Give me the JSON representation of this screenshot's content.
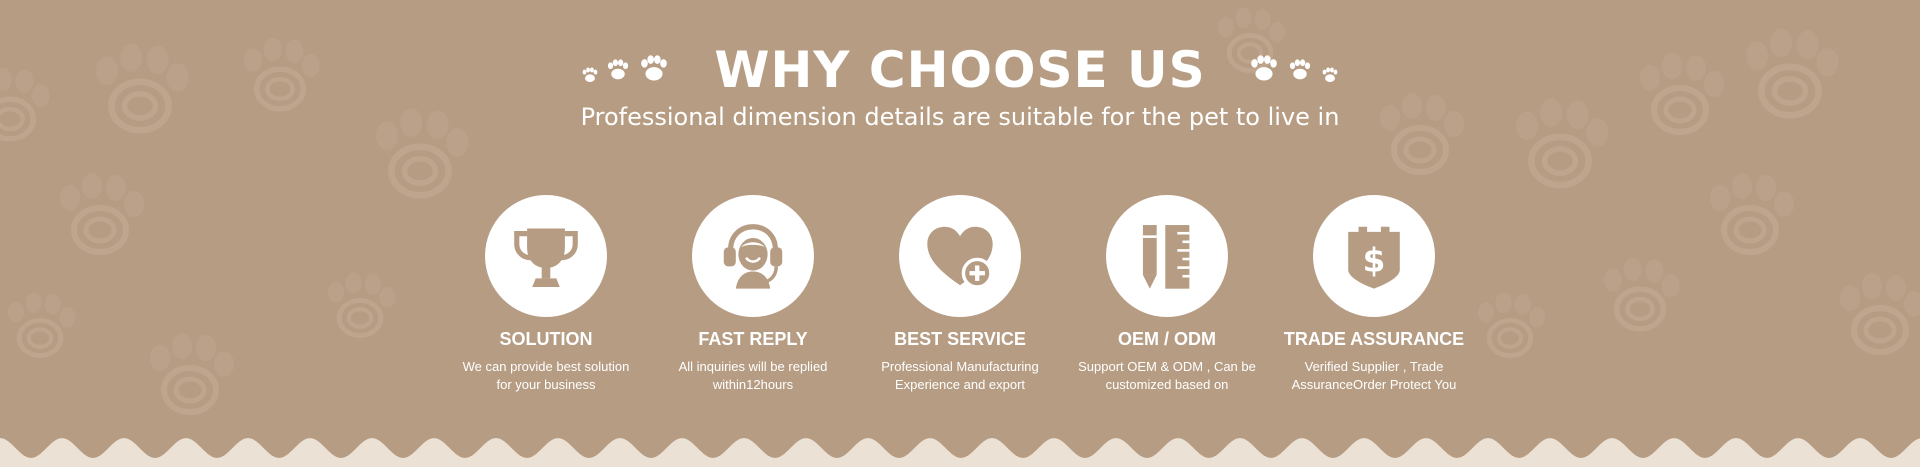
{
  "colors": {
    "background": "#b69c83",
    "foreground": "#ffffff",
    "wave": "#ece1d5"
  },
  "heading": {
    "title": "WHY CHOOSE US",
    "subtitle": "Professional dimension details are suitable for the pet to live in"
  },
  "features": [
    {
      "icon": "trophy-icon",
      "title": "SOLUTION",
      "desc": "We can provide best solution for your business"
    },
    {
      "icon": "headset-icon",
      "title": "FAST REPLY",
      "desc": "All inquiries will be replied within12hours"
    },
    {
      "icon": "heart-plus-icon",
      "title": "BEST SERVICE",
      "desc": "Professional Manufacturing Experience and export"
    },
    {
      "icon": "ruler-pencil-icon",
      "title": "OEM / ODM",
      "desc": "Support OEM & ODM , Can be customized based on"
    },
    {
      "icon": "dollar-bag-icon",
      "title": "TRADE ASSURANCE",
      "desc": "Verified Supplier , Trade AssuranceOrder Protect You"
    }
  ]
}
